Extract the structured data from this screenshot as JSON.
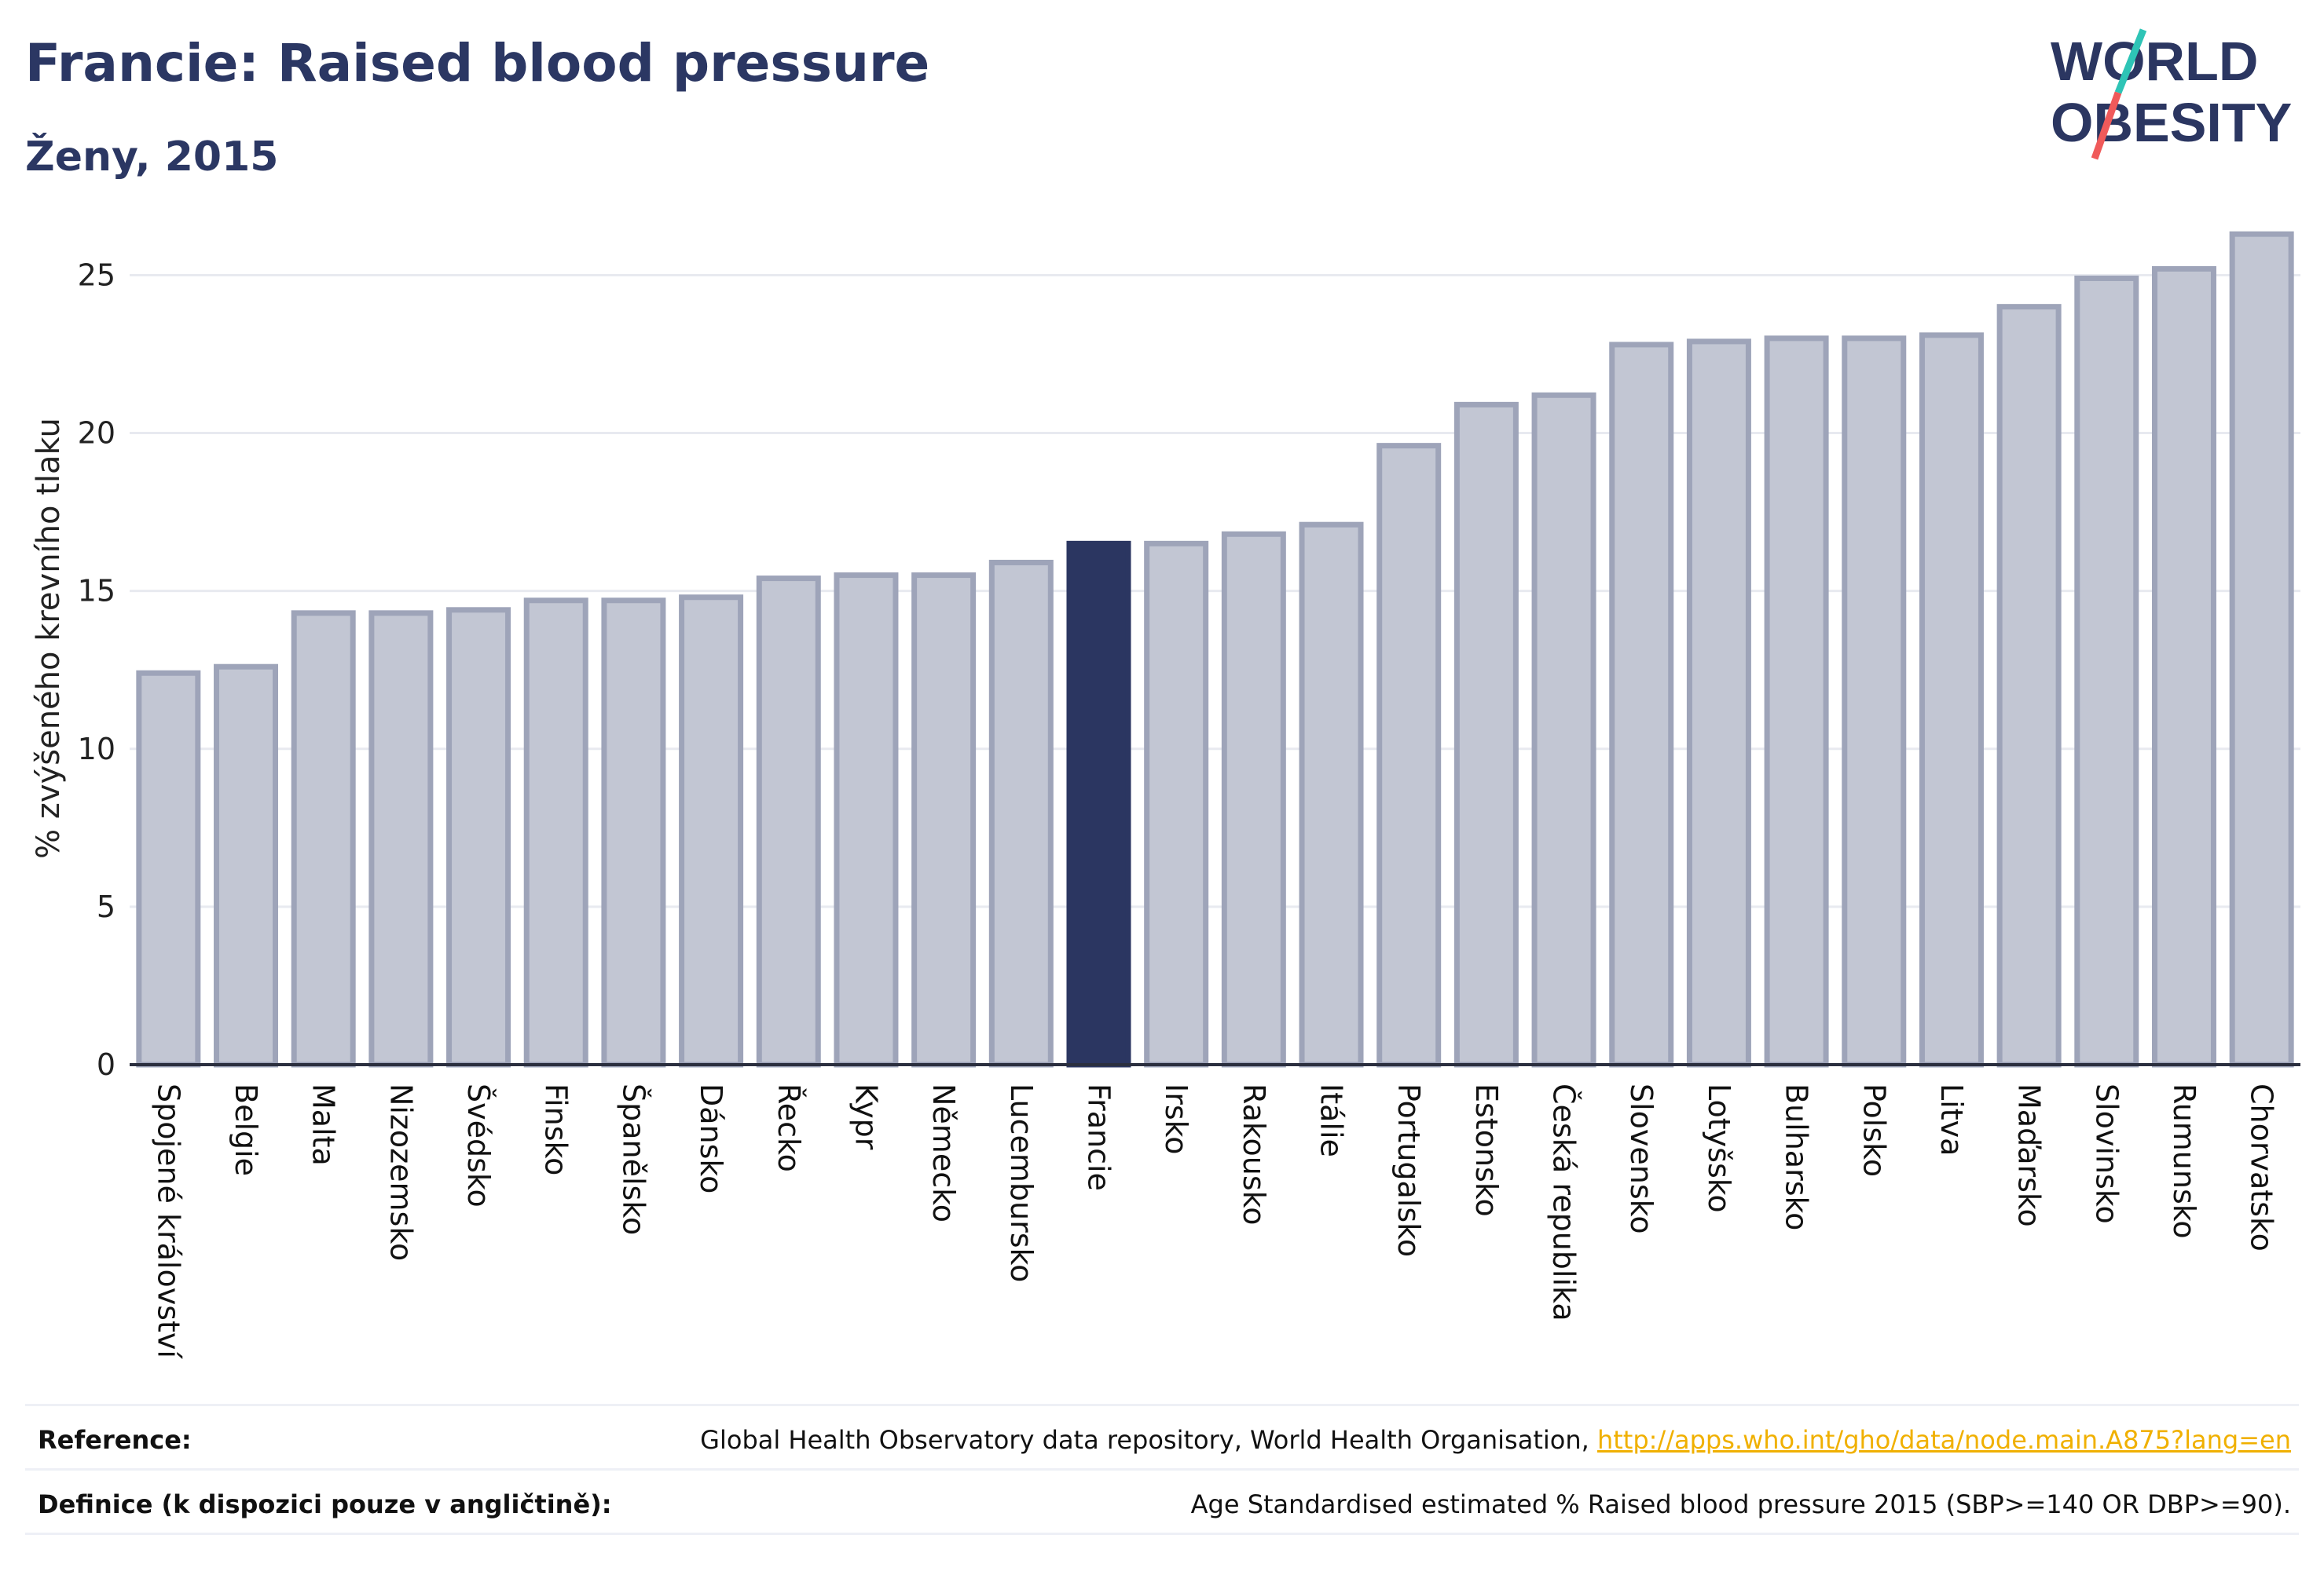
{
  "header": {
    "title": "Francie: Raised blood pressure",
    "subtitle": "Ženy, 2015",
    "logo": {
      "line1": "WORLD",
      "line2": "OBESITY",
      "slash_colors": [
        "#2ec4b6",
        "#f05a5a"
      ]
    }
  },
  "chart_data": {
    "type": "bar",
    "title": "Francie: Raised blood pressure",
    "subtitle": "Ženy, 2015",
    "ylabel": "% zvýšeného krevního tlaku",
    "xlabel": "",
    "ylim": [
      0,
      27
    ],
    "yticks": [
      0,
      5,
      10,
      15,
      20,
      25
    ],
    "grid": true,
    "categories": [
      "Spojené království",
      "Belgie",
      "Malta",
      "Nizozemsko",
      "Švédsko",
      "Finsko",
      "Španělsko",
      "Dánsko",
      "Řecko",
      "Kypr",
      "Německo",
      "Lucembursko",
      "Francie",
      "Irsko",
      "Rakousko",
      "Itálie",
      "Portugalsko",
      "Estonsko",
      "Česká republika",
      "Slovensko",
      "Lotyšsko",
      "Bulharsko",
      "Polsko",
      "Litva",
      "Maďarsko",
      "Slovinsko",
      "Rumunsko",
      "Chorvatsko"
    ],
    "values": [
      12.4,
      12.6,
      14.3,
      14.3,
      14.4,
      14.7,
      14.7,
      14.8,
      15.4,
      15.5,
      15.5,
      15.9,
      16.5,
      16.5,
      16.8,
      17.1,
      19.6,
      20.9,
      21.2,
      22.8,
      22.9,
      23.0,
      23.0,
      23.1,
      24.0,
      24.9,
      25.2,
      26.3
    ],
    "highlight": "Francie",
    "colors": {
      "bar": "#c2c6d3",
      "bar_border": "#9ea4b9",
      "highlight": "#2b3661",
      "axis": "#2b2f3f",
      "grid": "#e8eaf0"
    }
  },
  "footer": {
    "reference_label": "Reference:",
    "reference_text": "Global Health Observatory data repository, World Health Organisation,",
    "reference_link": "http://apps.who.int/gho/data/node.main.A875?lang=en",
    "definition_label": "Definice (k dispozici pouze v angličtině):",
    "definition_text": "Age Standardised estimated % Raised blood pressure 2015 (SBP>=140 OR DBP>=90)."
  }
}
